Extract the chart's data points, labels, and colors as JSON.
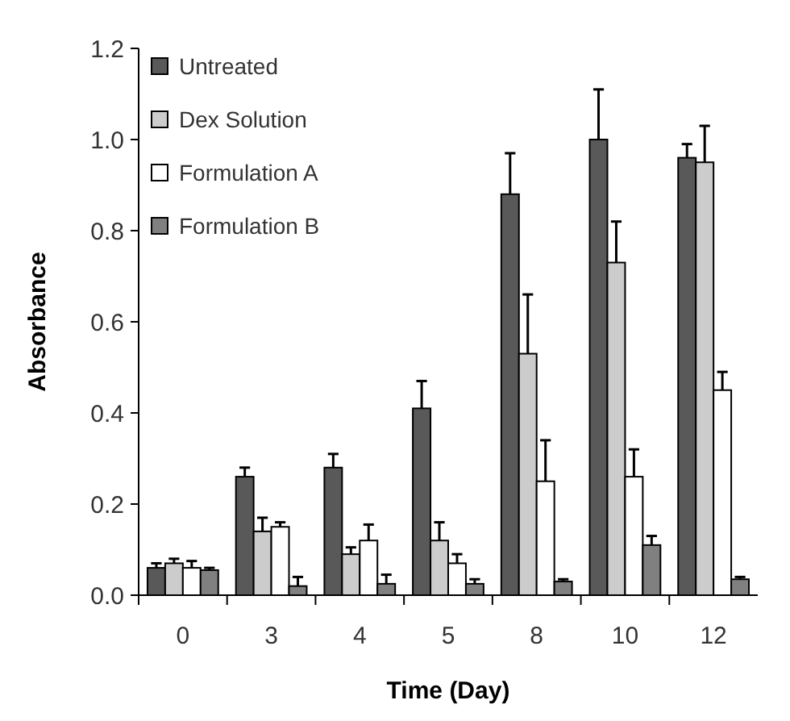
{
  "chart_data": {
    "type": "bar",
    "xlabel": "Time (Day)",
    "ylabel": "Absorbance",
    "categories": [
      "0",
      "3",
      "4",
      "5",
      "8",
      "10",
      "12"
    ],
    "series": [
      {
        "name": "Untreated",
        "color": "#595959",
        "values": [
          0.06,
          0.26,
          0.28,
          0.41,
          0.88,
          1.0,
          0.96
        ],
        "errors": [
          [
            0.06,
            0.07
          ],
          [
            0.26,
            0.28
          ],
          [
            0.28,
            0.31
          ],
          [
            0.41,
            0.47
          ],
          [
            0.88,
            0.97
          ],
          [
            1.0,
            1.11
          ],
          [
            0.96,
            0.99
          ]
        ]
      },
      {
        "name": "Dex Solution",
        "color": "#cccccc",
        "values": [
          0.07,
          0.14,
          0.09,
          0.12,
          0.53,
          0.73,
          0.95
        ],
        "errors": [
          [
            0.07,
            0.08
          ],
          [
            0.14,
            0.17
          ],
          [
            0.09,
            0.105
          ],
          [
            0.12,
            0.16
          ],
          [
            0.53,
            0.66
          ],
          [
            0.73,
            0.82
          ],
          [
            0.95,
            1.03
          ]
        ]
      },
      {
        "name": "Formulation A",
        "color": "#ffffff",
        "values": [
          0.06,
          0.15,
          0.12,
          0.07,
          0.25,
          0.26,
          0.45
        ],
        "errors": [
          [
            0.06,
            0.075
          ],
          [
            0.15,
            0.16
          ],
          [
            0.12,
            0.155
          ],
          [
            0.07,
            0.09
          ],
          [
            0.25,
            0.34
          ],
          [
            0.26,
            0.32
          ],
          [
            0.45,
            0.49
          ]
        ]
      },
      {
        "name": "Formulation B",
        "color": "#808080",
        "values": [
          0.055,
          0.02,
          0.025,
          0.025,
          0.03,
          0.11,
          0.035
        ],
        "errors": [
          [
            0.055,
            0.06
          ],
          [
            0.02,
            0.04
          ],
          [
            0.025,
            0.045
          ],
          [
            0.025,
            0.035
          ],
          [
            0.03,
            0.035
          ],
          [
            0.11,
            0.13
          ],
          [
            0.035,
            0.04
          ]
        ]
      }
    ],
    "ylim": [
      0,
      1.2
    ],
    "yticks": [
      {
        "value": 0,
        "label": "0.0"
      },
      {
        "value": 0.2,
        "label": "0.2"
      },
      {
        "value": 0.4,
        "label": "0.4"
      },
      {
        "value": 0.6,
        "label": "0.6"
      },
      {
        "value": 0.8,
        "label": "0.8"
      },
      {
        "value": 1,
        "label": "1.0"
      },
      {
        "value": 1.2,
        "label": "1.2"
      }
    ],
    "legend": "top left",
    "grid": false
  }
}
